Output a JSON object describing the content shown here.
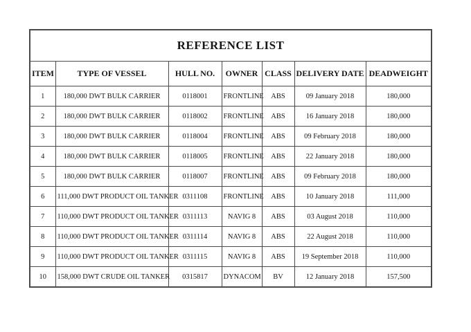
{
  "table": {
    "title": "REFERENCE LIST",
    "columns": [
      "ITEM",
      "TYPE OF VESSEL",
      "HULL NO.",
      "OWNER",
      "CLASS",
      "DELIVERY DATE",
      "DEADWEIGHT"
    ],
    "rows": [
      {
        "item": "1",
        "type_of_vessel": "180,000 DWT BULK CARRIER",
        "hull_no": "0118001",
        "owner": "FRONTLINE",
        "class": "ABS",
        "delivery_date": "09 January 2018",
        "deadweight": "180,000"
      },
      {
        "item": "2",
        "type_of_vessel": "180,000 DWT BULK CARRIER",
        "hull_no": "0118002",
        "owner": "FRONTLINE",
        "class": "ABS",
        "delivery_date": "16 January 2018",
        "deadweight": "180,000"
      },
      {
        "item": "3",
        "type_of_vessel": "180,000 DWT BULK CARRIER",
        "hull_no": "0118004",
        "owner": "FRONTLINE",
        "class": "ABS",
        "delivery_date": "09 February 2018",
        "deadweight": "180,000"
      },
      {
        "item": "4",
        "type_of_vessel": "180,000 DWT BULK CARRIER",
        "hull_no": "0118005",
        "owner": "FRONTLINE",
        "class": "ABS",
        "delivery_date": "22 January 2018",
        "deadweight": "180,000"
      },
      {
        "item": "5",
        "type_of_vessel": "180,000 DWT BULK CARRIER",
        "hull_no": "0118007",
        "owner": "FRONTLINE",
        "class": "ABS",
        "delivery_date": "09 February 2018",
        "deadweight": "180,000"
      },
      {
        "item": "6",
        "type_of_vessel": "111,000 DWT PRODUCT OIL TANKER",
        "hull_no": "0311108",
        "owner": "FRONTLINE",
        "class": "ABS",
        "delivery_date": "10 January 2018",
        "deadweight": "111,000"
      },
      {
        "item": "7",
        "type_of_vessel": "110,000 DWT PRODUCT OIL TANKER",
        "hull_no": "0311113",
        "owner": "NAVIG 8",
        "class": "ABS",
        "delivery_date": "03 August 2018",
        "deadweight": "110,000"
      },
      {
        "item": "8",
        "type_of_vessel": "110,000 DWT PRODUCT OIL TANKER",
        "hull_no": "0311114",
        "owner": "NAVIG 8",
        "class": "ABS",
        "delivery_date": "22 August 2018",
        "deadweight": "110,000"
      },
      {
        "item": "9",
        "type_of_vessel": "110,000 DWT PRODUCT OIL TANKER",
        "hull_no": "0311115",
        "owner": "NAVIG 8",
        "class": "ABS",
        "delivery_date": "19 September 2018",
        "deadweight": "110,000"
      },
      {
        "item": "10",
        "type_of_vessel": "158,000 DWT CRUDE OIL TANKER",
        "hull_no": "0315817",
        "owner": "DYNACOM",
        "class": "BV",
        "delivery_date": "12 January 2018",
        "deadweight": "157,500"
      }
    ],
    "colors": {
      "background": "#ffffff",
      "border": "#4a4a4a",
      "text": "#161616"
    }
  }
}
